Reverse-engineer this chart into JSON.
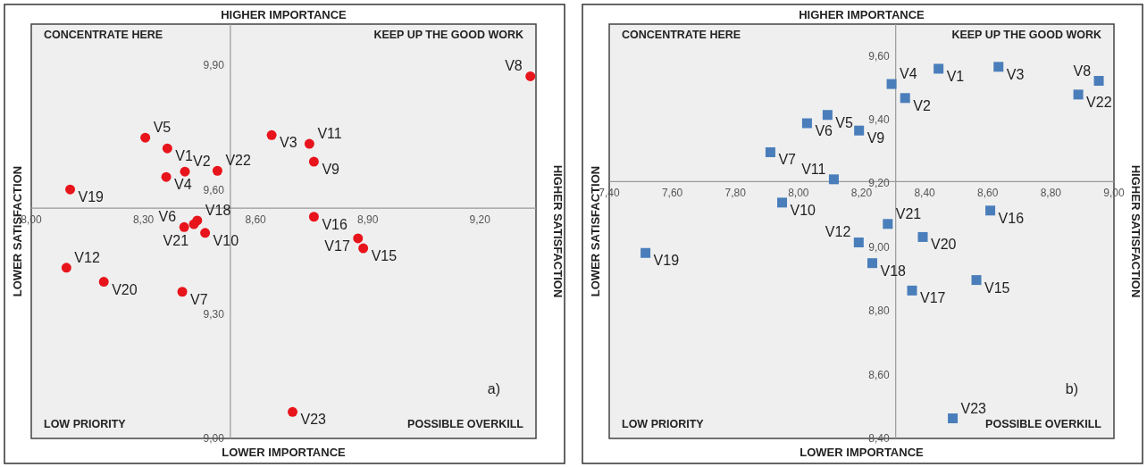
{
  "chart_data": [
    {
      "type": "scatter",
      "title": "HIGHER IMPORTANCE",
      "xlabel": "LOWER IMPORTANCE",
      "ylabel": "LOWER SATISFACTION",
      "y2label": "HIGHER SATISFACTION",
      "marker": "circle",
      "xlim": [
        8.0,
        9.35
      ],
      "ylim": [
        9.0,
        10.0
      ],
      "xticks": [
        {
          "value": 8.0,
          "label": "8,00"
        },
        {
          "value": 8.3,
          "label": "8,30"
        },
        {
          "value": 8.6,
          "label": "8,60"
        },
        {
          "value": 8.9,
          "label": "8,90"
        },
        {
          "value": 9.2,
          "label": "9,20"
        }
      ],
      "yticks": [
        {
          "value": 9.0,
          "label": "9,00"
        },
        {
          "value": 9.3,
          "label": "9,30"
        },
        {
          "value": 9.6,
          "label": "9,60"
        },
        {
          "value": 9.9,
          "label": "9,90"
        }
      ],
      "series": [
        {
          "color": "#e8141b",
          "x": [
            8.364,
            8.411,
            8.643,
            8.361,
            8.305,
            8.409,
            8.404,
            9.335,
            8.756,
            8.465,
            8.744,
            8.094,
            8.888,
            8.756,
            8.874,
            8.444,
            8.104,
            8.194,
            8.435,
            8.498,
            8.699
          ],
          "values": [
            9.7,
            9.644,
            9.732,
            9.631,
            9.726,
            9.51,
            9.354,
            9.874,
            9.668,
            9.496,
            9.711,
            9.412,
            9.459,
            9.535,
            9.483,
            9.526,
            9.601,
            9.378,
            9.517,
            9.646,
            9.064
          ]
        }
      ],
      "annotations": [
        "CONCENTRATE HERE",
        "KEEP UP THE GOOD WORK",
        "LOW PRIORITY",
        "POSSIBLE OVERKILL",
        "a)",
        {
          "text": "V1",
          "x": 8.364,
          "y": 9.7
        },
        {
          "text": "V2",
          "x": 8.411,
          "y": 9.644
        },
        {
          "text": "V3",
          "x": 8.643,
          "y": 9.732
        },
        {
          "text": "V4",
          "x": 8.361,
          "y": 9.631
        },
        {
          "text": "V5",
          "x": 8.305,
          "y": 9.726
        },
        {
          "text": "V6",
          "x": 8.409,
          "y": 9.51
        },
        {
          "text": "V7",
          "x": 8.404,
          "y": 9.354
        },
        {
          "text": "V8",
          "x": 9.335,
          "y": 9.874
        },
        {
          "text": "V9",
          "x": 8.756,
          "y": 9.668
        },
        {
          "text": "V10",
          "x": 8.465,
          "y": 9.496
        },
        {
          "text": "V11",
          "x": 8.744,
          "y": 9.711
        },
        {
          "text": "V12",
          "x": 8.094,
          "y": 9.412
        },
        {
          "text": "V15",
          "x": 8.888,
          "y": 9.459
        },
        {
          "text": "V16",
          "x": 8.756,
          "y": 9.535
        },
        {
          "text": "V17",
          "x": 8.874,
          "y": 9.483
        },
        {
          "text": "V18",
          "x": 8.444,
          "y": 9.526
        },
        {
          "text": "V19",
          "x": 8.104,
          "y": 9.601
        },
        {
          "text": "V20",
          "x": 8.194,
          "y": 9.378
        },
        {
          "text": "V21",
          "x": 8.435,
          "y": 9.517
        },
        {
          "text": "V22",
          "x": 8.498,
          "y": 9.646
        },
        {
          "text": "V23",
          "x": 8.699,
          "y": 9.064
        }
      ]
    },
    {
      "type": "scatter",
      "title": "HIGHER IMPORTANCE",
      "xlabel": "LOWER IMPORTANCE",
      "ylabel": "LOWER SATISFACTION",
      "y2label": "HIGHER SATISFACTION",
      "marker": "square",
      "xlim": [
        7.4,
        9.0
      ],
      "ylim": [
        8.4,
        9.7
      ],
      "xticks": [
        {
          "value": 7.4,
          "label": "7,40"
        },
        {
          "value": 7.6,
          "label": "7,60"
        },
        {
          "value": 7.8,
          "label": "7,80"
        },
        {
          "value": 8.0,
          "label": "8,00"
        },
        {
          "value": 8.2,
          "label": "8,20"
        },
        {
          "value": 8.4,
          "label": "8,40"
        },
        {
          "value": 8.6,
          "label": "8,60"
        },
        {
          "value": 8.8,
          "label": "8,80"
        },
        {
          "value": 9.0,
          "label": "9,00"
        }
      ],
      "yticks": [
        {
          "value": 8.4,
          "label": "8,40"
        },
        {
          "value": 8.6,
          "label": "8,60"
        },
        {
          "value": 8.8,
          "label": "8,80"
        },
        {
          "value": 9.0,
          "label": "9,00"
        },
        {
          "value": 9.2,
          "label": "9,20"
        },
        {
          "value": 9.4,
          "label": "9,40"
        },
        {
          "value": 9.6,
          "label": "9,60"
        }
      ],
      "series": [
        {
          "color": "#4a7ebb",
          "x": [
            8.444,
            8.338,
            8.634,
            8.295,
            8.092,
            8.027,
            7.911,
            8.952,
            8.192,
            7.948,
            8.112,
            8.191,
            8.564,
            8.608,
            8.36,
            8.234,
            7.515,
            8.394,
            8.283,
            8.887,
            8.489
          ],
          "values": [
            9.56,
            9.468,
            9.566,
            9.512,
            9.415,
            9.389,
            9.298,
            9.522,
            9.366,
            9.14,
            9.213,
            9.015,
            8.897,
            9.115,
            8.864,
            8.95,
            8.982,
            9.032,
            9.073,
            9.479,
            8.463
          ]
        }
      ],
      "annotations": [
        "CONCENTRATE HERE",
        "KEEP UP THE GOOD WORK",
        "LOW PRIORITY",
        "POSSIBLE OVERKILL",
        "b)",
        {
          "text": "V1",
          "x": 8.444,
          "y": 9.56
        },
        {
          "text": "V2",
          "x": 8.338,
          "y": 9.468
        },
        {
          "text": "V3",
          "x": 8.634,
          "y": 9.566
        },
        {
          "text": "V4",
          "x": 8.295,
          "y": 9.512
        },
        {
          "text": "V5",
          "x": 8.092,
          "y": 9.415
        },
        {
          "text": "V6",
          "x": 8.027,
          "y": 9.389
        },
        {
          "text": "V7",
          "x": 7.911,
          "y": 9.298
        },
        {
          "text": "V8",
          "x": 8.952,
          "y": 9.522
        },
        {
          "text": "V9",
          "x": 8.192,
          "y": 9.366
        },
        {
          "text": "V10",
          "x": 7.948,
          "y": 9.14
        },
        {
          "text": "V11",
          "x": 8.112,
          "y": 9.213
        },
        {
          "text": "V12",
          "x": 8.191,
          "y": 9.015
        },
        {
          "text": "V15",
          "x": 8.564,
          "y": 8.897
        },
        {
          "text": "V16",
          "x": 8.608,
          "y": 9.115
        },
        {
          "text": "V17",
          "x": 8.36,
          "y": 8.864
        },
        {
          "text": "V18",
          "x": 8.234,
          "y": 8.95
        },
        {
          "text": "V19",
          "x": 7.515,
          "y": 8.982
        },
        {
          "text": "V20",
          "x": 8.394,
          "y": 9.032
        },
        {
          "text": "V21",
          "x": 8.283,
          "y": 9.073
        },
        {
          "text": "V22",
          "x": 8.887,
          "y": 9.479
        },
        {
          "text": "V23",
          "x": 8.489,
          "y": 8.463
        }
      ]
    }
  ]
}
